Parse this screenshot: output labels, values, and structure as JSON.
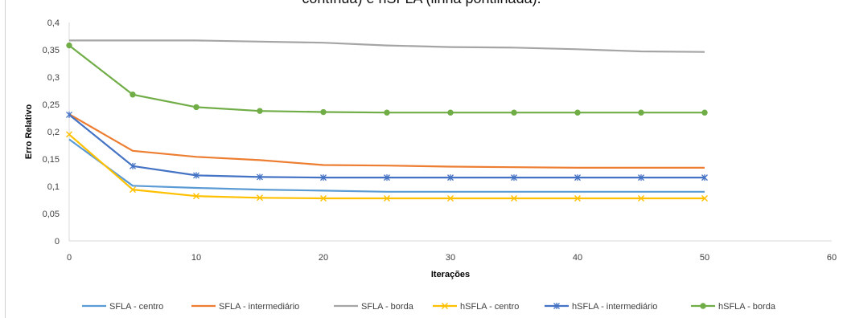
{
  "title_partial": "contínua) e hSFLA (linha pontilhada).",
  "chart_data": {
    "type": "line",
    "xlabel": "Iterações",
    "ylabel": "Erro Relativo",
    "xlim": [
      0,
      60
    ],
    "ylim": [
      0,
      0.4
    ],
    "x_ticks": [
      "0",
      "10",
      "20",
      "30",
      "40",
      "50",
      "60"
    ],
    "y_ticks": [
      "0",
      "0,05",
      "0,1",
      "0,15",
      "0,2",
      "0,25",
      "0,3",
      "0,35",
      "0,4"
    ],
    "grid": false,
    "legend_position": "bottom",
    "x": [
      0,
      5,
      10,
      15,
      20,
      25,
      30,
      35,
      40,
      45,
      50
    ],
    "series": [
      {
        "name": "SFLA - centro",
        "color": "#5b9bd5",
        "marker": "none",
        "values": [
          0.186,
          0.101,
          0.097,
          0.094,
          0.092,
          0.09,
          0.09,
          0.09,
          0.09,
          0.09,
          0.09
        ]
      },
      {
        "name": "SFLA - intermediário",
        "color": "#ed7d31",
        "marker": "none",
        "values": [
          0.232,
          0.165,
          0.154,
          0.148,
          0.139,
          0.138,
          0.136,
          0.135,
          0.134,
          0.134,
          0.134
        ]
      },
      {
        "name": "SFLA - borda",
        "color": "#a5a5a5",
        "marker": "none",
        "values": [
          0.367,
          0.367,
          0.367,
          0.365,
          0.363,
          0.358,
          0.355,
          0.354,
          0.351,
          0.347,
          0.346
        ]
      },
      {
        "name": "hSFLA - centro",
        "color": "#ffc000",
        "marker": "x",
        "values": [
          0.195,
          0.094,
          0.082,
          0.079,
          0.078,
          0.078,
          0.078,
          0.078,
          0.078,
          0.078,
          0.078
        ]
      },
      {
        "name": "hSFLA - intermediário",
        "color": "#4472c4",
        "marker": "star",
        "values": [
          0.231,
          0.137,
          0.12,
          0.117,
          0.116,
          0.116,
          0.116,
          0.116,
          0.116,
          0.116,
          0.116
        ]
      },
      {
        "name": "hSFLA - borda",
        "color": "#70ad47",
        "marker": "circle",
        "values": [
          0.358,
          0.268,
          0.245,
          0.238,
          0.236,
          0.235,
          0.235,
          0.235,
          0.235,
          0.235,
          0.235
        ]
      }
    ]
  }
}
